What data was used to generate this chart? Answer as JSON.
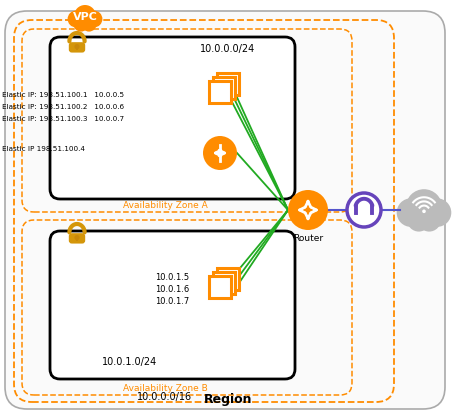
{
  "bg_color": "#ffffff",
  "orange": "#FF8C00",
  "gold": "#D4960A",
  "green": "#22AA22",
  "blue": "#5555CC",
  "purple": "#6644BB",
  "black": "#111111",
  "gray_ec": "#999999",
  "region_label": "Region",
  "vpc_label": "VPC",
  "zone_a_label": "Availability Zone A",
  "zone_b_label": "Availability Zone B",
  "cidr_a": "10.0.0.0/24",
  "cidr_b": "10.0.1.0/24",
  "vpc_cidr": "10.0.0.0/16",
  "eip1": "Elastic IP: 198.51.100.1",
  "eip2": "Elastic IP: 198.51.100.2",
  "eip3": "Elastic IP: 198.51.100.3",
  "eip4": "Elastic IP 198.51.100.4",
  "ip1": "10.0.0.5",
  "ip2": "10.0.0.6",
  "ip3": "10.0.0.7",
  "b_ip1": "10.0.1.5",
  "b_ip2": "10.0.1.6",
  "b_ip3": "10.0.1.7",
  "router_label": "Router"
}
